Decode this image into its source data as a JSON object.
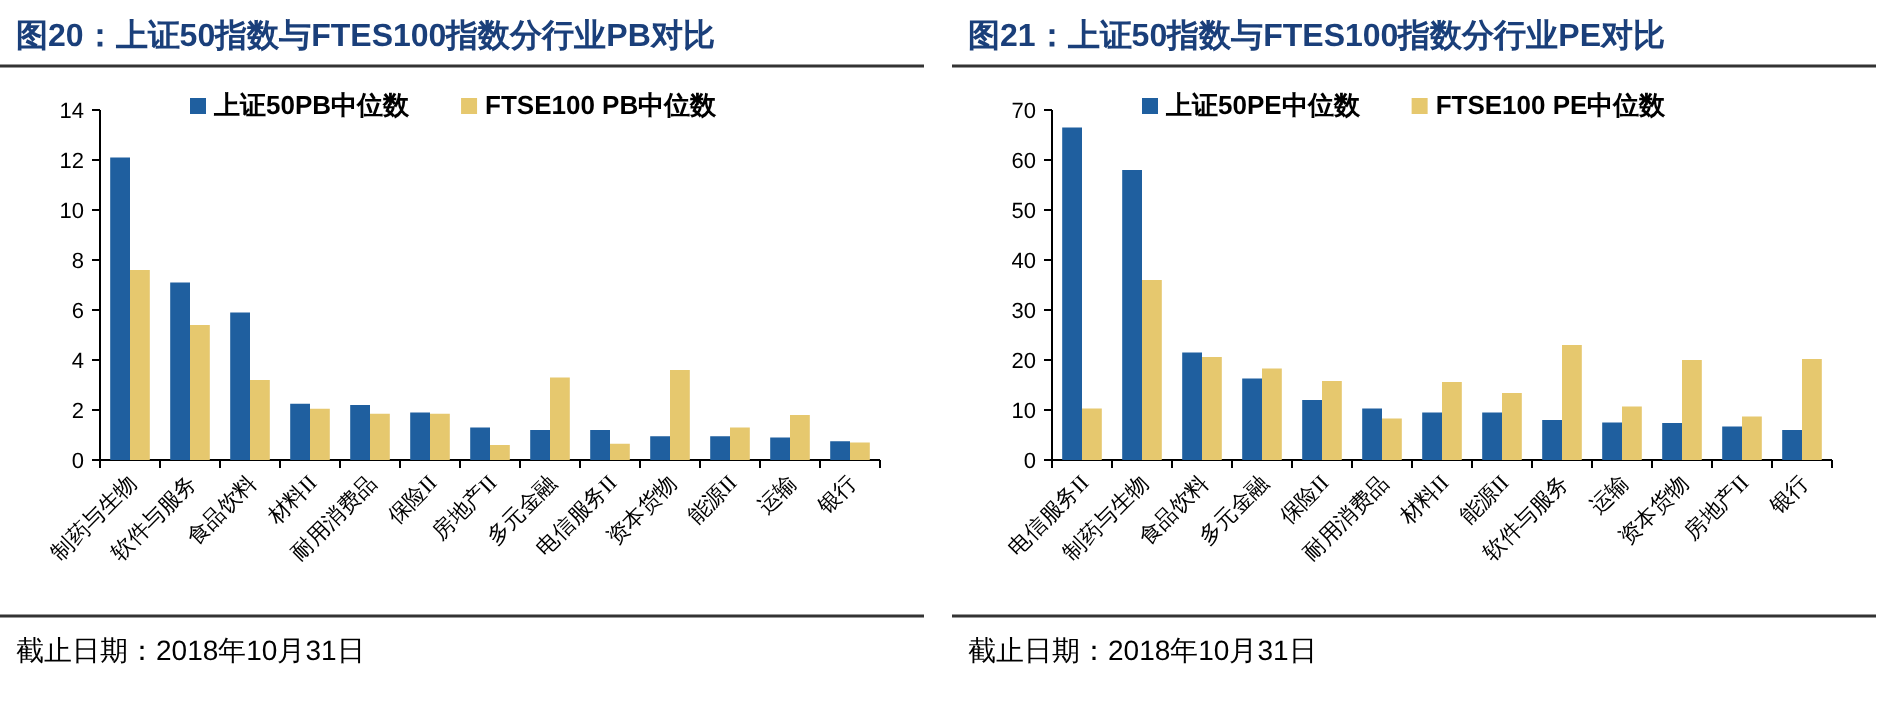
{
  "chart_data": [
    {
      "type": "bar",
      "title": "图20：上证50指数与FTES100指数分行业PB对比",
      "categories": [
        "制药与生物",
        "软件与服务",
        "食品饮料",
        "材料II",
        "耐用消费品",
        "保险II",
        "房地产II",
        "多元金融",
        "电信服务II",
        "资本货物",
        "能源II",
        "运输",
        "银行"
      ],
      "series": [
        {
          "name": "上证50PB中位数",
          "color": "#1f5f9f",
          "values": [
            12.1,
            7.1,
            5.9,
            2.25,
            2.2,
            1.9,
            1.3,
            1.2,
            1.2,
            0.95,
            0.95,
            0.9,
            0.75
          ]
        },
        {
          "name": "FTSE100 PB中位数",
          "color": "#e6c86e",
          "values": [
            7.6,
            5.4,
            3.2,
            2.05,
            1.85,
            1.85,
            0.6,
            3.3,
            0.65,
            3.6,
            1.3,
            1.8,
            0.7
          ]
        }
      ],
      "ylim": [
        0,
        14
      ],
      "yticks": [
        0,
        2,
        4,
        6,
        8,
        10,
        12,
        14
      ],
      "legend": "top",
      "annotations": [
        "截止日期：2018年10月31日"
      ]
    },
    {
      "type": "bar",
      "title": "图21：上证50指数与FTES100指数分行业PE对比",
      "categories": [
        "电信服务II",
        "制药与生物",
        "食品饮料",
        "多元金融",
        "保险II",
        "耐用消费品",
        "材料II",
        "能源II",
        "软件与服务",
        "运输",
        "资本货物",
        "房地产II",
        "银行"
      ],
      "series": [
        {
          "name": "上证50PE中位数",
          "color": "#1f5f9f",
          "values": [
            66.5,
            58,
            21.5,
            16.3,
            12,
            10.3,
            9.5,
            9.5,
            8,
            7.5,
            7.4,
            6.7,
            6
          ]
        },
        {
          "name": "FTSE100 PE中位数",
          "color": "#e6c86e",
          "values": [
            10.3,
            36,
            20.6,
            18.3,
            15.8,
            8.3,
            15.6,
            13.4,
            23,
            10.7,
            20,
            8.7,
            20.2
          ]
        }
      ],
      "ylim": [
        0,
        70
      ],
      "yticks": [
        0,
        10,
        20,
        30,
        40,
        50,
        60,
        70
      ],
      "legend": "top",
      "annotations": [
        "截止日期：2018年10月31日"
      ]
    }
  ]
}
